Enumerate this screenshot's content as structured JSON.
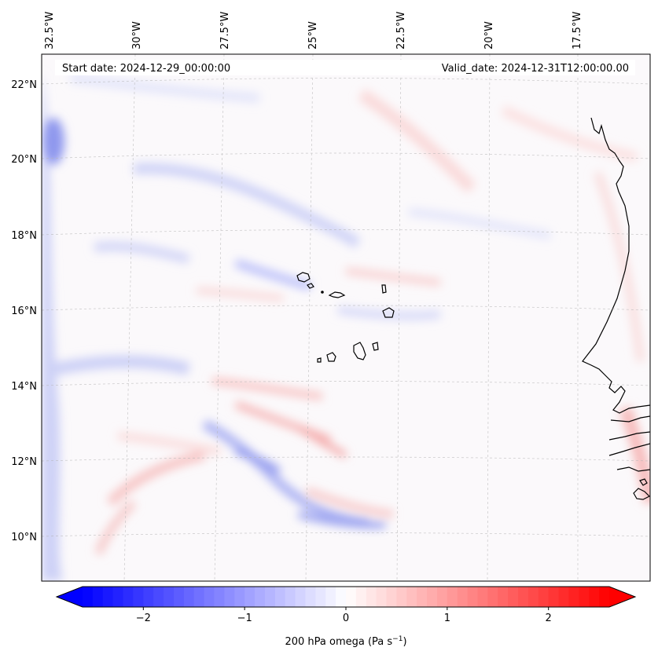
{
  "map": {
    "start_label": "Start date: 2024-12-29_00:00:00",
    "valid_label": "Valid_date: 2024-12-31T12:00:00.00",
    "lon_labels": [
      "32.5°W",
      "30°W",
      "27.5°W",
      "25°W",
      "22.5°W",
      "20°W",
      "17.5°W"
    ],
    "lat_labels": [
      "22°N",
      "20°N",
      "18°N",
      "16°N",
      "14°N",
      "12°N",
      "10°N"
    ],
    "features": [
      "Cape Verde islands",
      "West African coastline"
    ]
  },
  "colorbar": {
    "ticks": [
      "−2",
      "−1",
      "0",
      "1",
      "2"
    ],
    "label": "200 hPa omega (Pa s",
    "label_sup": "−1",
    "label_tail": ")",
    "min": -2.6,
    "max": 2.6,
    "neg_color": "#0000ff",
    "pos_color": "#ff0000"
  }
}
